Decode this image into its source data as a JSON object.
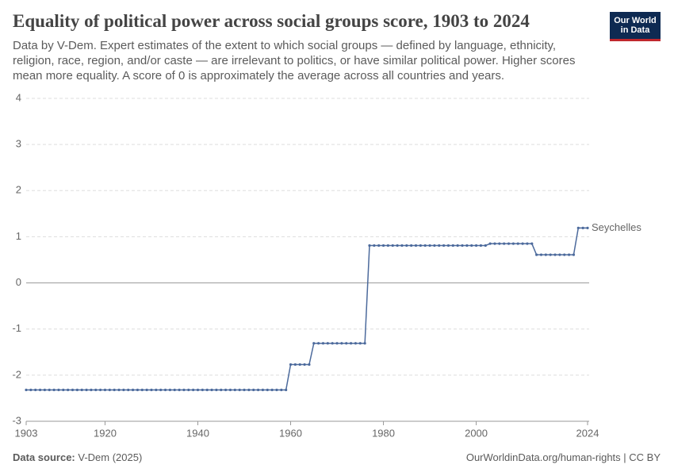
{
  "chart_data": {
    "type": "line",
    "title": "Equality of political power across social groups score, 1903 to 2024",
    "subtitle": "Data by V-Dem. Expert estimates of the extent to which social groups — defined by language, ethnicity, religion, race, region, and/or caste — are irrelevant to politics, or have similar political power. Higher scores mean more equality. A score of 0 is approximately the average across all countries and years.",
    "x": [
      1903,
      1904,
      1905,
      1906,
      1907,
      1908,
      1909,
      1910,
      1911,
      1912,
      1913,
      1914,
      1915,
      1916,
      1917,
      1918,
      1919,
      1920,
      1921,
      1922,
      1923,
      1924,
      1925,
      1926,
      1927,
      1928,
      1929,
      1930,
      1931,
      1932,
      1933,
      1934,
      1935,
      1936,
      1937,
      1938,
      1939,
      1940,
      1941,
      1942,
      1943,
      1944,
      1945,
      1946,
      1947,
      1948,
      1949,
      1950,
      1951,
      1952,
      1953,
      1954,
      1955,
      1956,
      1957,
      1958,
      1959,
      1960,
      1961,
      1962,
      1963,
      1964,
      1965,
      1966,
      1967,
      1968,
      1969,
      1970,
      1971,
      1972,
      1973,
      1974,
      1975,
      1976,
      1977,
      1978,
      1979,
      1980,
      1981,
      1982,
      1983,
      1984,
      1985,
      1986,
      1987,
      1988,
      1989,
      1990,
      1991,
      1992,
      1993,
      1994,
      1995,
      1996,
      1997,
      1998,
      1999,
      2000,
      2001,
      2002,
      2003,
      2004,
      2005,
      2006,
      2007,
      2008,
      2009,
      2010,
      2011,
      2012,
      2013,
      2014,
      2015,
      2016,
      2017,
      2018,
      2019,
      2020,
      2021,
      2022,
      2023,
      2024
    ],
    "series": [
      {
        "name": "Seychelles",
        "color": "#4c6a9c",
        "values": [
          -2.32,
          -2.32,
          -2.32,
          -2.32,
          -2.32,
          -2.32,
          -2.32,
          -2.32,
          -2.32,
          -2.32,
          -2.32,
          -2.32,
          -2.32,
          -2.32,
          -2.32,
          -2.32,
          -2.32,
          -2.32,
          -2.32,
          -2.32,
          -2.32,
          -2.32,
          -2.32,
          -2.32,
          -2.32,
          -2.32,
          -2.32,
          -2.32,
          -2.32,
          -2.32,
          -2.32,
          -2.32,
          -2.32,
          -2.32,
          -2.32,
          -2.32,
          -2.32,
          -2.32,
          -2.32,
          -2.32,
          -2.32,
          -2.32,
          -2.32,
          -2.32,
          -2.32,
          -2.32,
          -2.32,
          -2.32,
          -2.32,
          -2.32,
          -2.32,
          -2.32,
          -2.32,
          -2.32,
          -2.32,
          -2.32,
          -2.32,
          -1.77,
          -1.77,
          -1.77,
          -1.77,
          -1.77,
          -1.31,
          -1.31,
          -1.31,
          -1.31,
          -1.31,
          -1.31,
          -1.31,
          -1.31,
          -1.31,
          -1.31,
          -1.31,
          -1.31,
          0.81,
          0.81,
          0.81,
          0.81,
          0.81,
          0.81,
          0.81,
          0.81,
          0.81,
          0.81,
          0.81,
          0.81,
          0.81,
          0.81,
          0.81,
          0.81,
          0.81,
          0.81,
          0.81,
          0.81,
          0.81,
          0.81,
          0.81,
          0.81,
          0.81,
          0.81,
          0.85,
          0.85,
          0.85,
          0.85,
          0.85,
          0.85,
          0.85,
          0.85,
          0.85,
          0.85,
          0.61,
          0.61,
          0.61,
          0.61,
          0.61,
          0.61,
          0.61,
          0.61,
          0.61,
          1.19,
          1.19,
          1.19
        ]
      }
    ],
    "xlim": [
      1903,
      2024
    ],
    "xticks": [
      1903,
      1920,
      1940,
      1960,
      1980,
      2000,
      2024
    ],
    "ylim": [
      -3,
      4
    ],
    "yticks": [
      -3,
      -2,
      -1,
      0,
      1,
      2,
      3,
      4
    ],
    "grid": true
  },
  "logo": {
    "line1": "Our World",
    "line2": "in Data"
  },
  "footer": {
    "source_label": "Data source:",
    "source": "V-Dem (2025)",
    "right": "OurWorldinData.org/human-rights | CC BY"
  }
}
